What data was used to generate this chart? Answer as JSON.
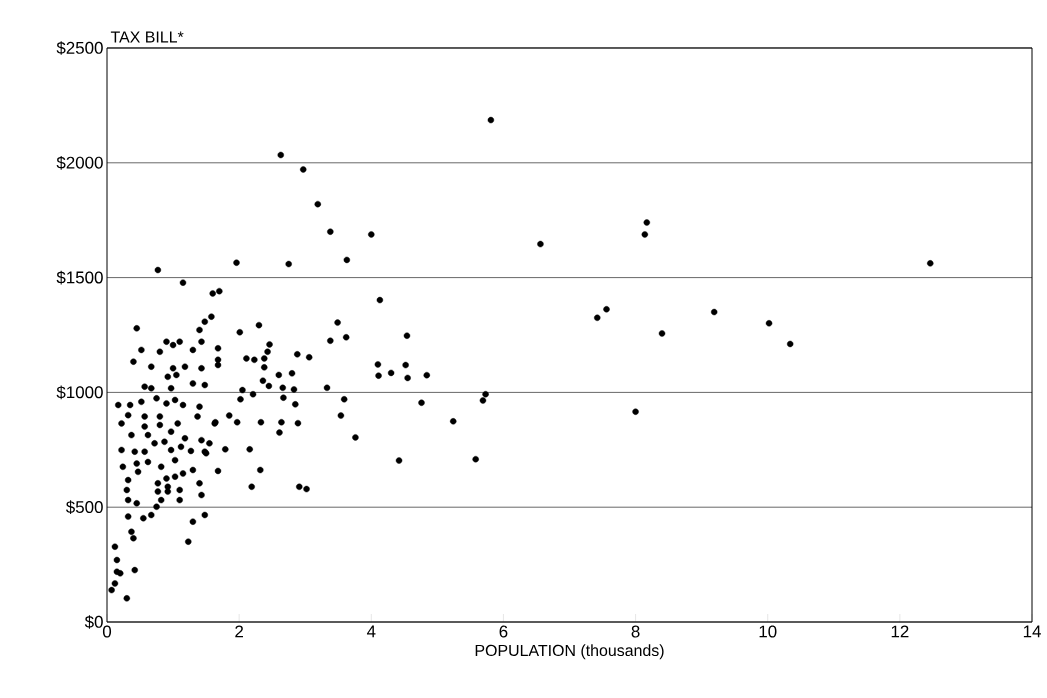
{
  "chart_data": {
    "type": "scatter",
    "xlabel": "POPULATION (thousands)",
    "ylabel": "TAX BILL*",
    "color": "#000000",
    "marker": "circle",
    "grid": "y",
    "xlim": [
      0,
      14
    ],
    "ylim": [
      0,
      2500
    ],
    "xticks": [
      0,
      2,
      4,
      6,
      8,
      10,
      12,
      14
    ],
    "yticks": [
      {
        "value": 0,
        "label": "$0"
      },
      {
        "value": 500,
        "label": "$500"
      },
      {
        "value": 1000,
        "label": "$1000"
      },
      {
        "value": 1500,
        "label": "$1500"
      },
      {
        "value": 2000,
        "label": "$2000"
      },
      {
        "value": 2500,
        "label": "$2500"
      }
    ],
    "x": [
      0.77,
      1.15,
      1.6,
      1.7,
      0.45,
      1.58,
      1.48,
      1.4,
      1.43,
      1.3,
      0.52,
      0.9,
      1.0,
      1.1,
      0.8,
      0.4,
      0.67,
      1.0,
      1.18,
      1.43,
      1.68,
      0.92,
      1.05,
      1.3,
      1.48,
      0.57,
      0.67,
      0.97,
      0.17,
      0.35,
      0.52,
      0.75,
      0.9,
      1.03,
      1.15,
      1.4,
      0.32,
      0.57,
      0.8,
      1.07,
      1.37,
      1.63,
      0.22,
      0.57,
      0.8,
      0.37,
      0.62,
      0.97,
      1.18,
      1.43,
      1.55,
      0.22,
      0.42,
      0.57,
      0.72,
      0.87,
      0.97,
      1.12,
      1.27,
      1.48,
      0.24,
      0.45,
      0.62,
      0.82,
      1.03,
      0.32,
      0.47,
      0.77,
      0.9,
      1.03,
      1.15,
      1.3,
      1.4,
      0.3,
      0.77,
      0.92,
      1.1,
      0.32,
      0.45,
      0.82,
      0.92,
      1.1,
      1.43,
      0.32,
      0.55,
      0.67,
      0.75,
      1.3,
      1.48,
      0.37,
      0.4,
      1.23,
      0.12,
      0.15,
      0.42,
      0.15,
      0.2,
      0.12,
      0.07,
      0.3,
      2.63,
      2.97,
      3.19,
      3.38,
      4.0,
      3.63,
      2.75,
      1.96,
      3.49,
      2.3,
      2.01,
      3.38,
      3.62,
      2.46,
      2.43,
      1.68,
      2.88,
      3.06,
      2.11,
      2.23,
      2.38,
      2.38,
      2.6,
      2.8,
      1.68,
      2.36,
      2.45,
      2.66,
      2.83,
      3.33,
      2.05,
      2.21,
      2.02,
      3.59,
      2.67,
      2.85,
      3.54,
      1.85,
      1.64,
      1.97,
      2.33,
      2.64,
      2.89,
      2.61,
      3.76,
      1.5,
      1.79,
      2.16,
      1.68,
      2.32,
      2.19,
      2.91,
      3.02,
      5.81,
      6.56,
      8.17,
      8.14,
      4.13,
      4.54,
      7.56,
      7.42,
      8.4,
      4.1,
      4.52,
      4.11,
      4.3,
      4.55,
      4.84,
      4.76,
      5.73,
      5.69,
      5.24,
      8.0,
      4.42,
      5.58,
      12.46,
      9.19,
      10.02,
      10.34
    ],
    "values": [
      1533,
      1478,
      1431,
      1441,
      1279,
      1330,
      1308,
      1272,
      1221,
      1185,
      1185,
      1221,
      1206,
      1221,
      1177,
      1134,
      1112,
      1105,
      1112,
      1105,
      1119,
      1068,
      1076,
      1039,
      1032,
      1025,
      1018,
      1018,
      945,
      945,
      959,
      974,
      952,
      967,
      945,
      938,
      901,
      895,
      895,
      865,
      895,
      865,
      865,
      851,
      858,
      814,
      814,
      829,
      800,
      792,
      778,
      749,
      742,
      742,
      778,
      785,
      749,
      763,
      745,
      742,
      676,
      690,
      697,
      676,
      705,
      618,
      654,
      604,
      625,
      633,
      647,
      662,
      604,
      575,
      568,
      589,
      575,
      531,
      517,
      531,
      568,
      531,
      553,
      459,
      452,
      466,
      502,
      437,
      466,
      393,
      365,
      350,
      328,
      270,
      226,
      219,
      212,
      168,
      139,
      103,
      2034,
      1971,
      1820,
      1700,
      1688,
      1577,
      1559,
      1565,
      1304,
      1293,
      1262,
      1225,
      1240,
      1209,
      1177,
      1192,
      1166,
      1153,
      1148,
      1142,
      1148,
      1109,
      1076,
      1083,
      1142,
      1051,
      1028,
      1020,
      1013,
      1020,
      1010,
      992,
      970,
      970,
      977,
      948,
      899,
      899,
      870,
      870,
      870,
      870,
      866,
      825,
      804,
      735,
      752,
      752,
      658,
      662,
      589,
      589,
      579,
      2186,
      1646,
      1740,
      1688,
      1402,
      1247,
      1362,
      1325,
      1257,
      1122,
      1119,
      1073,
      1085,
      1063,
      1075,
      955,
      992,
      965,
      874,
      916,
      703,
      709,
      1562,
      1350,
      1301,
      1211
    ]
  }
}
